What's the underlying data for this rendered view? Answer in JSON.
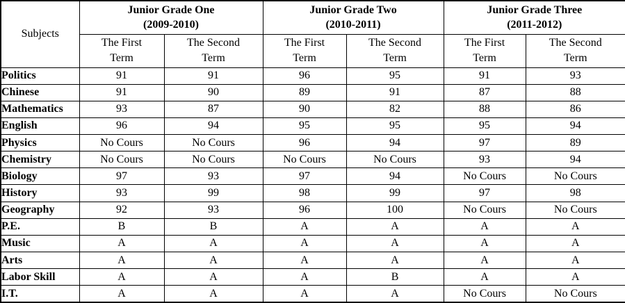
{
  "table": {
    "corner_header": "Subjects",
    "grade_headers": [
      {
        "title": "Junior Grade One",
        "years": "(2009-2010)",
        "term1": "The First\nTerm",
        "term2": "The Second\nTerm"
      },
      {
        "title": "Junior Grade Two",
        "years": "(2010-2011)",
        "term1": "The First\nTerm",
        "term2": "The Second\nTerm"
      },
      {
        "title": "Junior Grade Three",
        "years": "(2011-2012)",
        "term1": "The First\nTerm",
        "term2": "The Second\nTerm"
      }
    ],
    "rows": [
      {
        "subject": "Politics",
        "values": [
          "91",
          "91",
          "96",
          "95",
          "91",
          "93"
        ]
      },
      {
        "subject": "Chinese",
        "values": [
          "91",
          "90",
          "89",
          "91",
          "87",
          "88"
        ]
      },
      {
        "subject": "Mathematics",
        "values": [
          "93",
          "87",
          "90",
          "82",
          "88",
          "86"
        ]
      },
      {
        "subject": "English",
        "values": [
          "96",
          "94",
          "95",
          "95",
          "95",
          "94"
        ]
      },
      {
        "subject": "Physics",
        "values": [
          "No Cours",
          "No Cours",
          "96",
          "94",
          "97",
          "89"
        ]
      },
      {
        "subject": "Chemistry",
        "values": [
          "No Cours",
          "No Cours",
          "No Cours",
          "No Cours",
          "93",
          "94"
        ]
      },
      {
        "subject": "Biology",
        "values": [
          "97",
          "93",
          "97",
          "94",
          "No Cours",
          "No Cours"
        ]
      },
      {
        "subject": "History",
        "values": [
          "93",
          "99",
          "98",
          "99",
          "97",
          "98"
        ]
      },
      {
        "subject": "Geography",
        "values": [
          "92",
          "93",
          "96",
          "100",
          "No Cours",
          "No Cours"
        ]
      },
      {
        "subject": "P.E.",
        "values": [
          "B",
          "B",
          "A",
          "A",
          "A",
          "A"
        ]
      },
      {
        "subject": "Music",
        "values": [
          "A",
          "A",
          "A",
          "A",
          "A",
          "A"
        ]
      },
      {
        "subject": "Arts",
        "values": [
          "A",
          "A",
          "A",
          "A",
          "A",
          "A"
        ]
      },
      {
        "subject": "Labor Skill",
        "values": [
          "A",
          "A",
          "A",
          "B",
          "A",
          "A"
        ]
      },
      {
        "subject": "I.T.",
        "values": [
          "A",
          "A",
          "A",
          "A",
          "No Cours",
          "No Cours"
        ]
      }
    ]
  },
  "colors": {
    "border": "#000000",
    "background": "#ffffff",
    "text": "#000000"
  }
}
